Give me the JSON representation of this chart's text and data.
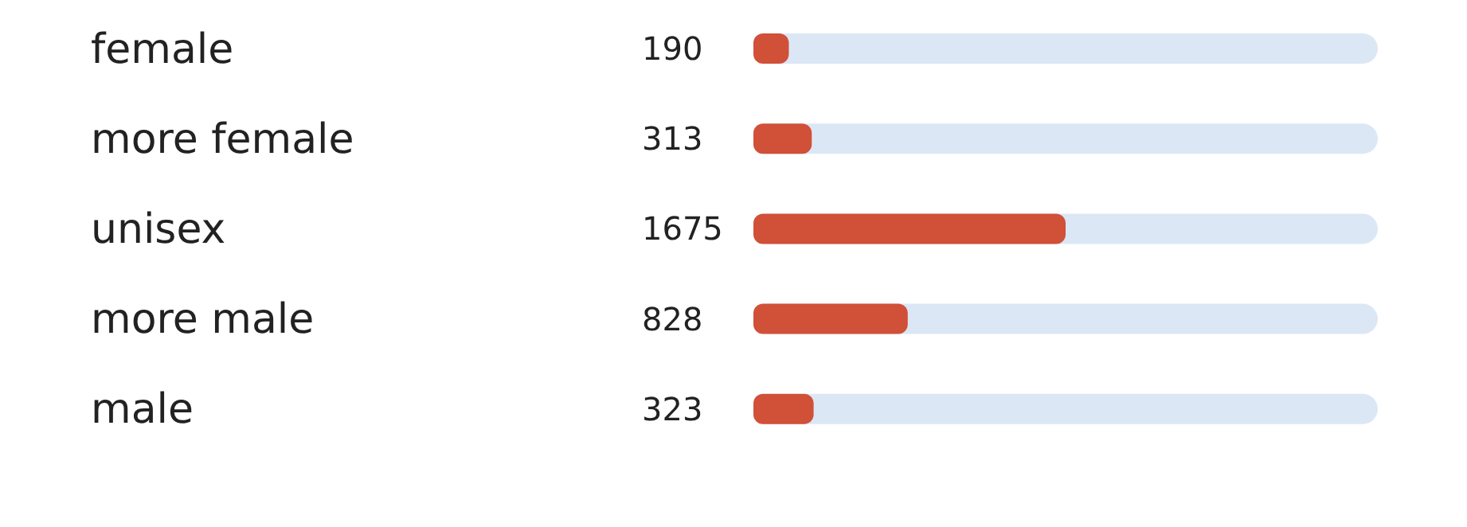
{
  "chart_data": {
    "type": "bar",
    "orientation": "horizontal",
    "categories": [
      "female",
      "more female",
      "unisex",
      "more male",
      "male"
    ],
    "values": [
      190,
      313,
      1675,
      828,
      323
    ],
    "color": "#d05038",
    "data_labels": true,
    "xlim": [
      0,
      3350
    ],
    "tick_labels": "y",
    "grid": false
  }
}
